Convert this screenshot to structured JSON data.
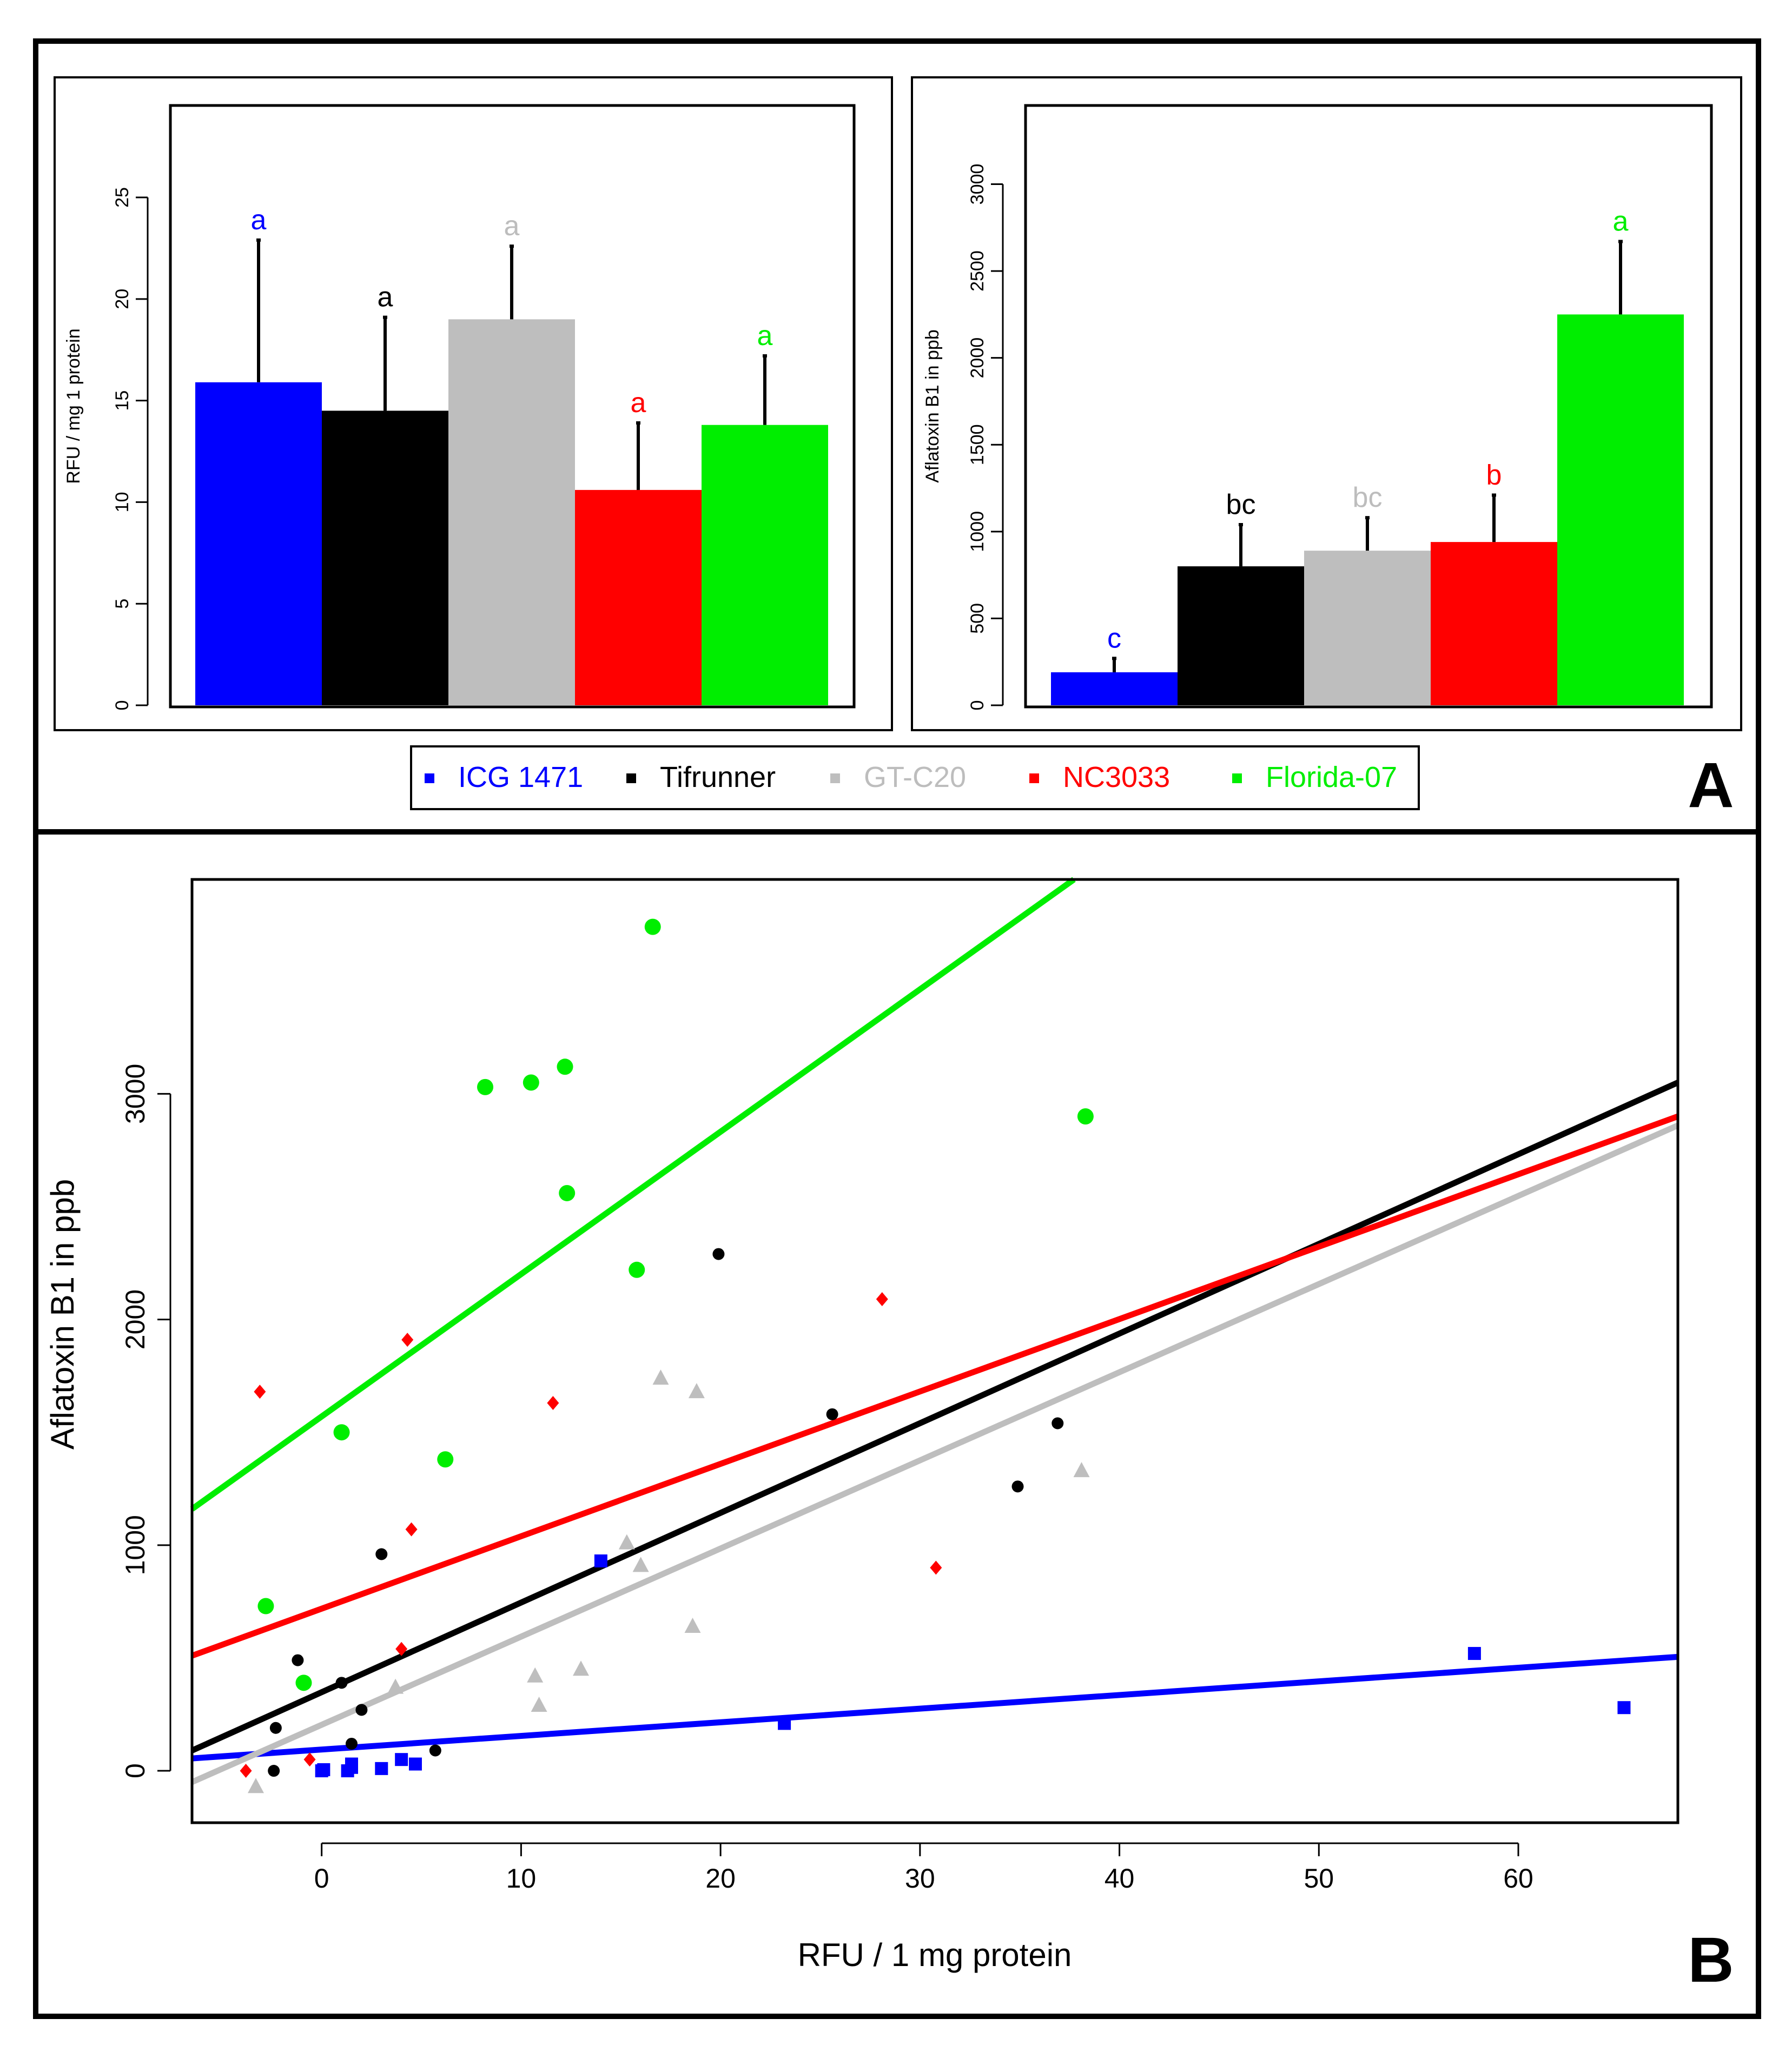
{
  "panels": {
    "A": "A",
    "B": "B"
  },
  "colors": {
    "ICG 1471": "#0000ff",
    "Tifrunner": "#000000",
    "GT-C20": "#bebebe",
    "NC3033": "#ff0000",
    "Florida-07": "#00ee00"
  },
  "legend": {
    "items": [
      {
        "label": "ICG 1471",
        "color": "#0000ff"
      },
      {
        "label": "Tifrunner",
        "color": "#000000"
      },
      {
        "label": "GT-C20",
        "color": "#bebebe"
      },
      {
        "label": "NC3033",
        "color": "#ff0000"
      },
      {
        "label": "Florida-07",
        "color": "#00ee00"
      }
    ]
  },
  "chart_data": [
    {
      "id": "A-left",
      "type": "bar",
      "title": "",
      "xlabel": "",
      "ylabel": "RFU / mg 1 protein",
      "categories": [
        "ICG 1471",
        "Tifrunner",
        "GT-C20",
        "NC3033",
        "Florida-07"
      ],
      "values": [
        15.9,
        14.5,
        19.0,
        10.6,
        13.8
      ],
      "errors": [
        7.0,
        4.6,
        3.6,
        3.3,
        3.4
      ],
      "letters": [
        "a",
        "a",
        "a",
        "a",
        "a"
      ],
      "ylim": [
        0,
        29.5
      ],
      "yticks": [
        0,
        5,
        10,
        15,
        20,
        25
      ],
      "ytick_labels": [
        "0",
        "5",
        "10",
        "15",
        "20",
        "25"
      ]
    },
    {
      "id": "A-right",
      "type": "bar",
      "title": "",
      "xlabel": "",
      "ylabel": "Aflatoxin B1 in ppb",
      "categories": [
        "ICG 1471",
        "Tifrunner",
        "GT-C20",
        "NC3033",
        "Florida-07"
      ],
      "values": [
        190,
        800,
        890,
        940,
        2250
      ],
      "errors": [
        80,
        240,
        190,
        270,
        420
      ],
      "letters": [
        "c",
        "bc",
        "bc",
        "b",
        "a"
      ],
      "ylim": [
        0,
        3450
      ],
      "yticks": [
        0,
        500,
        1000,
        1500,
        2000,
        2500,
        3000
      ],
      "ytick_labels": [
        "0",
        "500",
        "1000",
        "1500",
        "2000",
        "2500",
        "3000"
      ]
    },
    {
      "id": "B",
      "type": "scatter",
      "title": "",
      "xlabel": "RFU / 1 mg protein",
      "ylabel": "Aflatoxin B1 in ppb",
      "xlim": [
        -6.5,
        68
      ],
      "ylim": [
        -230,
        3950
      ],
      "xticks": [
        0,
        10,
        20,
        30,
        40,
        50,
        60
      ],
      "xtick_labels": [
        "0",
        "10",
        "20",
        "30",
        "40",
        "50",
        "60"
      ],
      "yticks": [
        0,
        1000,
        2000,
        3000
      ],
      "ytick_labels": [
        "0",
        "1000",
        "2000",
        "3000"
      ],
      "series": [
        {
          "name": "ICG 1471",
          "color": "#0000ff",
          "marker": "square",
          "points": [
            [
              0,
              0
            ],
            [
              0.1,
              5
            ],
            [
              1.3,
              0
            ],
            [
              1.5,
              15
            ],
            [
              1.5,
              30
            ],
            [
              3,
              10
            ],
            [
              4,
              50
            ],
            [
              4.7,
              30
            ],
            [
              14,
              930
            ],
            [
              23.2,
              210
            ],
            [
              57.8,
              520
            ],
            [
              65.3,
              280
            ]
          ],
          "fit": [
            [
              -6.5,
              55
            ],
            [
              68,
              505
            ]
          ]
        },
        {
          "name": "Tifrunner",
          "color": "#000000",
          "marker": "circle",
          "points": [
            [
              -2.4,
              0
            ],
            [
              -2.3,
              190
            ],
            [
              -1.2,
              490
            ],
            [
              1,
              390
            ],
            [
              1.5,
              120
            ],
            [
              2,
              270
            ],
            [
              3,
              960
            ],
            [
              5.7,
              90
            ],
            [
              19.9,
              2290
            ],
            [
              25.6,
              1580
            ],
            [
              34.9,
              1260
            ],
            [
              36.9,
              1540
            ]
          ],
          "fit": [
            [
              -6.5,
              90
            ],
            [
              68,
              3050
            ]
          ]
        },
        {
          "name": "GT-C20",
          "color": "#bebebe",
          "marker": "triangle",
          "points": [
            [
              -3.3,
              -70
            ],
            [
              3.7,
              370
            ],
            [
              10.7,
              420
            ],
            [
              10.9,
              290
            ],
            [
              13,
              450
            ],
            [
              15.3,
              1010
            ],
            [
              16,
              910
            ],
            [
              17,
              1740
            ],
            [
              18.6,
              640
            ],
            [
              18.8,
              1680
            ],
            [
              38.1,
              1330
            ]
          ],
          "fit": [
            [
              -6.5,
              -50
            ],
            [
              68,
              2860
            ]
          ]
        },
        {
          "name": "NC3033",
          "color": "#ff0000",
          "marker": "diamond",
          "points": [
            [
              -3.8,
              0
            ],
            [
              -3.1,
              1680
            ],
            [
              -0.6,
              50
            ],
            [
              4,
              540
            ],
            [
              4.3,
              1910
            ],
            [
              4.5,
              1070
            ],
            [
              11.6,
              1630
            ],
            [
              28.1,
              2090
            ],
            [
              30.8,
              900
            ]
          ],
          "fit": [
            [
              -6.5,
              510
            ],
            [
              68,
              2900
            ]
          ]
        },
        {
          "name": "Florida-07",
          "color": "#00ee00",
          "marker": "circle",
          "points": [
            [
              -2.8,
              730
            ],
            [
              -0.9,
              390
            ],
            [
              1,
              1500
            ],
            [
              6.2,
              1380
            ],
            [
              8.2,
              3030
            ],
            [
              10.5,
              3050
            ],
            [
              12.2,
              3120
            ],
            [
              12.3,
              2560
            ],
            [
              15.8,
              2220
            ],
            [
              16.6,
              3740
            ],
            [
              38.3,
              2900
            ]
          ],
          "fit": [
            [
              -6.5,
              1160
            ],
            [
              37.72,
              3950
            ]
          ]
        }
      ]
    }
  ]
}
